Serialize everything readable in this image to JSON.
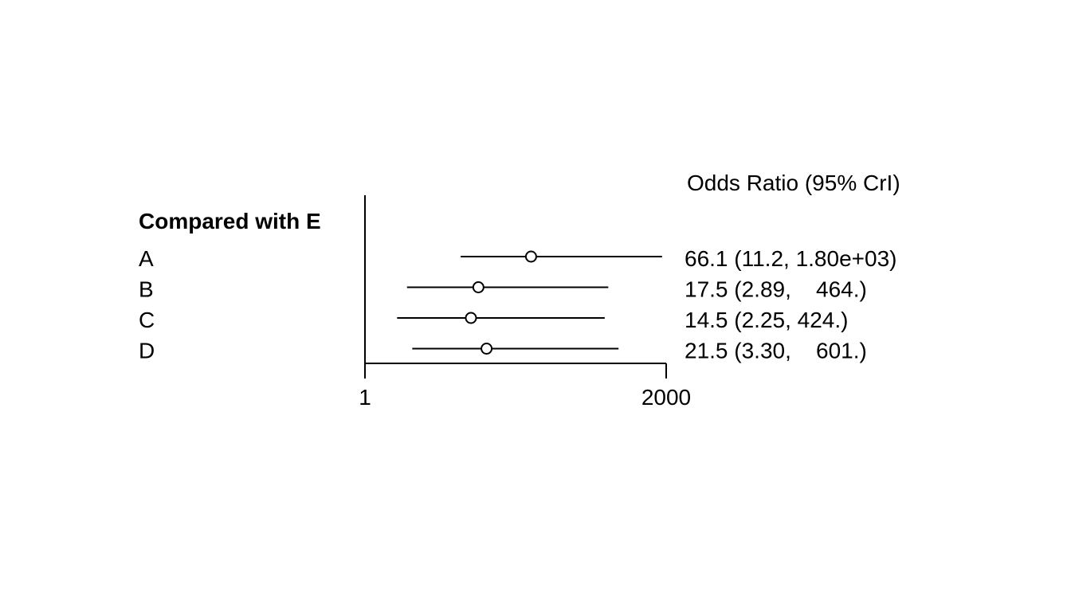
{
  "chart_data": {
    "type": "forest",
    "column_header": "Odds Ratio (95% CrI)",
    "group_header": "Compared with E",
    "scale": "log",
    "xlim": [
      1,
      2000
    ],
    "x_ticks": [
      "1",
      "2000"
    ],
    "reference_line": 1,
    "rows": [
      {
        "label": "A",
        "estimate": 66.1,
        "lower": 11.2,
        "upper": 1800,
        "ci_text": "66.1 (11.2, 1.80e+03)"
      },
      {
        "label": "B",
        "estimate": 17.5,
        "lower": 2.89,
        "upper": 464,
        "ci_text": "17.5 (2.89,    464.)"
      },
      {
        "label": "C",
        "estimate": 14.5,
        "lower": 2.25,
        "upper": 424,
        "ci_text": "14.5 (2.25, 424.)"
      },
      {
        "label": "D",
        "estimate": 21.5,
        "lower": 3.3,
        "upper": 601,
        "ci_text": "21.5 (3.30,    601.)"
      }
    ],
    "colors": {
      "ink": "#000000",
      "marker_fill": "#ffffff",
      "background": "#ffffff"
    }
  }
}
